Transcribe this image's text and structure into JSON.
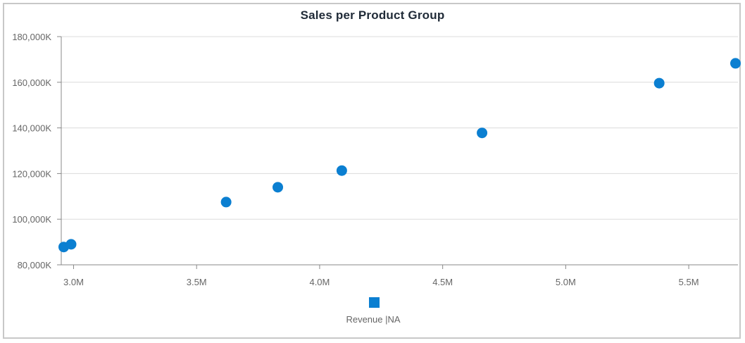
{
  "chart_data": {
    "type": "scatter",
    "title": "Sales per Product Group",
    "xlabel": "",
    "ylabel": "",
    "xlim": [
      2.95,
      5.7
    ],
    "ylim": [
      80000,
      180000
    ],
    "x_ticks": [
      3.0,
      3.5,
      4.0,
      4.5,
      5.0,
      5.5
    ],
    "x_tick_labels": [
      "3.0M",
      "3.5M",
      "4.0M",
      "4.5M",
      "5.0M",
      "5.5M"
    ],
    "y_ticks": [
      80000,
      100000,
      120000,
      140000,
      160000,
      180000
    ],
    "y_tick_labels": [
      "80,000K",
      "100,000K",
      "120,000K",
      "140,000K",
      "160,000K",
      "180,000K"
    ],
    "grid": "horizontal",
    "legend_position": "bottom",
    "series": [
      {
        "name": "Revenue |NA",
        "color": "#0b7fd1",
        "points": [
          {
            "x": 2.96,
            "y": 87800
          },
          {
            "x": 2.99,
            "y": 89000
          },
          {
            "x": 3.62,
            "y": 107500
          },
          {
            "x": 3.83,
            "y": 114000
          },
          {
            "x": 4.09,
            "y": 121300
          },
          {
            "x": 4.66,
            "y": 137800
          },
          {
            "x": 5.38,
            "y": 159600
          },
          {
            "x": 5.69,
            "y": 168300
          }
        ]
      }
    ]
  }
}
